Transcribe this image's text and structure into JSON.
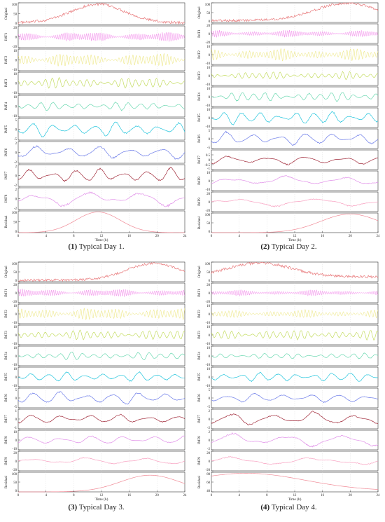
{
  "captions": [
    {
      "num": "(1)",
      "text": "Typical Day 1."
    },
    {
      "num": "(2)",
      "text": "Typical Day 2."
    },
    {
      "num": "(3)",
      "text": "Typical Day 3."
    },
    {
      "num": "(4)",
      "text": "Typical Day 4."
    }
  ],
  "chart_data": [
    {
      "type": "line",
      "title": "",
      "xlabel": "Time (h)",
      "xlim": [
        0,
        24
      ],
      "xticks": [
        0,
        4,
        8,
        12,
        16,
        20,
        24
      ],
      "grid": true,
      "panels": [
        {
          "label": "Original",
          "color": "#e8787a",
          "ylim": [
            0,
            100
          ],
          "yticks": [
            "0",
            "50",
            "100"
          ],
          "kind": "trend",
          "peak": 11.5,
          "width": 5.5,
          "base": 8,
          "amp": 85,
          "noise": 6
        },
        {
          "label": "IMF1",
          "color": "#f07ae8",
          "ylim": [
            -20,
            20
          ],
          "yticks": [
            "-20",
            "0",
            "20"
          ],
          "kind": "osc",
          "amp": 9,
          "period": 0.28
        },
        {
          "label": "IMF2",
          "color": "#e8e060",
          "ylim": [
            -10,
            10
          ],
          "yticks": [
            "-10",
            "0",
            "10"
          ],
          "kind": "osc",
          "amp": 6,
          "period": 0.5
        },
        {
          "label": "IMF3",
          "color": "#c4dc60",
          "ylim": [
            -10,
            10
          ],
          "yticks": [
            "-10",
            "0",
            "10"
          ],
          "kind": "osc",
          "amp": 5,
          "period": 1.0
        },
        {
          "label": "IMF4",
          "color": "#6ad8b0",
          "ylim": [
            -10,
            10
          ],
          "yticks": [
            "-10",
            "0",
            "10"
          ],
          "kind": "osc",
          "amp": 4,
          "period": 1.8
        },
        {
          "label": "IMF5",
          "color": "#20c4dc",
          "ylim": [
            -5,
            5
          ],
          "yticks": [
            "-5",
            "0",
            "5"
          ],
          "kind": "osc",
          "amp": 3.5,
          "period": 3.0
        },
        {
          "label": "IMF6",
          "color": "#6a7ae8",
          "ylim": [
            -2,
            2
          ],
          "yticks": [
            "-2",
            "0",
            "2"
          ],
          "kind": "osc",
          "amp": 1.3,
          "period": 4.5
        },
        {
          "label": "IMF7",
          "color": "#a02838",
          "ylim": [
            -2,
            2
          ],
          "yticks": [
            "-2",
            "0",
            "2"
          ],
          "kind": "osc",
          "amp": 1.4,
          "period": 3.4
        },
        {
          "label": "IMF8",
          "color": "#e08ee8",
          "ylim": [
            -2,
            2
          ],
          "yticks": [
            "-2",
            "0",
            "2"
          ],
          "kind": "osc",
          "amp": 1.5,
          "period": 7.5
        },
        {
          "label": "Residual",
          "color": "#f08a96",
          "ylim": [
            0,
            100
          ],
          "yticks": [
            "0",
            "50",
            "100"
          ],
          "kind": "smooth",
          "peak": 11.5,
          "width": 4.5,
          "base": 0,
          "amp": 95
        }
      ]
    },
    {
      "type": "line",
      "title": "",
      "xlabel": "Time (h)",
      "xlim": [
        0,
        24
      ],
      "xticks": [
        0,
        4,
        8,
        12,
        16,
        20,
        24
      ],
      "grid": true,
      "panels": [
        {
          "label": "Original",
          "color": "#e8787a",
          "ylim": [
            0,
            100
          ],
          "yticks": [
            "0",
            "50",
            "100"
          ],
          "kind": "trend",
          "peak": 19.5,
          "width": 6.5,
          "base": 10,
          "amp": 88,
          "noise": 6
        },
        {
          "label": "IMF1",
          "color": "#f07ae8",
          "ylim": [
            -20,
            20
          ],
          "yticks": [
            "-20",
            "0",
            "20"
          ],
          "kind": "osc",
          "amp": 7,
          "period": 0.28
        },
        {
          "label": "IMF2",
          "color": "#e8e060",
          "ylim": [
            -10,
            10
          ],
          "yticks": [
            "-10",
            "0",
            "10"
          ],
          "kind": "osc",
          "amp": 6,
          "period": 0.5
        },
        {
          "label": "IMF3",
          "color": "#c4dc60",
          "ylim": [
            -10,
            10
          ],
          "yticks": [
            "-10",
            "0",
            "10"
          ],
          "kind": "osc",
          "amp": 4,
          "period": 1.0
        },
        {
          "label": "IMF4",
          "color": "#6ad8b0",
          "ylim": [
            -10,
            10
          ],
          "yticks": [
            "-10",
            "0",
            "10"
          ],
          "kind": "osc",
          "amp": 5,
          "period": 1.6
        },
        {
          "label": "IMF5",
          "color": "#20c4dc",
          "ylim": [
            -10,
            10
          ],
          "yticks": [
            "-10",
            "0",
            "10"
          ],
          "kind": "osc",
          "amp": 7,
          "period": 2.6
        },
        {
          "label": "IMF6",
          "color": "#6a7ae8",
          "ylim": [
            -5,
            5
          ],
          "yticks": [
            "-5",
            "0",
            "5"
          ],
          "kind": "osc",
          "amp": 3.5,
          "period": 3.8
        },
        {
          "label": "IMF7",
          "color": "#a02838",
          "ylim": [
            -1,
            1
          ],
          "yticks": [
            "-1",
            "-0.5",
            "0",
            "0.5"
          ],
          "kind": "osc",
          "amp": 0.5,
          "period": 5.5
        },
        {
          "label": "IMF8",
          "color": "#e08ee8",
          "ylim": [
            -10,
            10
          ],
          "yticks": [
            "-10",
            "0",
            "10"
          ],
          "kind": "osc",
          "amp": 5,
          "period": 8.0
        },
        {
          "label": "IMF9",
          "color": "#f8a0c0",
          "ylim": [
            -20,
            20
          ],
          "yticks": [
            "-20",
            "0",
            "20"
          ],
          "kind": "osc",
          "amp": 10,
          "period": 12.0
        },
        {
          "label": "Residual",
          "color": "#f08a96",
          "ylim": [
            0,
            100
          ],
          "yticks": [
            "0",
            "50",
            "100"
          ],
          "kind": "smooth",
          "peak": 20,
          "width": 6,
          "base": 0,
          "amp": 95
        }
      ]
    },
    {
      "type": "line",
      "title": "",
      "xlabel": "Time (h)",
      "xlim": [
        0,
        24
      ],
      "xticks": [
        0,
        4,
        8,
        12,
        16,
        20,
        24
      ],
      "grid": true,
      "panels": [
        {
          "label": "Original",
          "color": "#e8787a",
          "ylim": [
            0,
            100
          ],
          "yticks": [
            "0",
            "50",
            "100"
          ],
          "kind": "trend",
          "peak": 19.5,
          "width": 5.5,
          "base": 8,
          "amp": 85,
          "noise": 6
        },
        {
          "label": "IMF1",
          "color": "#f07ae8",
          "ylim": [
            -20,
            20
          ],
          "yticks": [
            "-20",
            "0",
            "20"
          ],
          "kind": "osc",
          "amp": 8,
          "period": 0.28
        },
        {
          "label": "IMF2",
          "color": "#e8e060",
          "ylim": [
            -10,
            10
          ],
          "yticks": [
            "-10",
            "0",
            "10"
          ],
          "kind": "osc",
          "amp": 6,
          "period": 0.5
        },
        {
          "label": "IMF3",
          "color": "#c4dc60",
          "ylim": [
            -10,
            10
          ],
          "yticks": [
            "-10",
            "0",
            "10"
          ],
          "kind": "osc",
          "amp": 5,
          "period": 1.0
        },
        {
          "label": "IMF4",
          "color": "#6ad8b0",
          "ylim": [
            -10,
            10
          ],
          "yticks": [
            "-10",
            "0",
            "10"
          ],
          "kind": "osc",
          "amp": 4,
          "period": 1.6
        },
        {
          "label": "IMF5",
          "color": "#20c4dc",
          "ylim": [
            -10,
            10
          ],
          "yticks": [
            "-10",
            "0",
            "10"
          ],
          "kind": "osc",
          "amp": 5,
          "period": 2.6
        },
        {
          "label": "IMF6",
          "color": "#6a7ae8",
          "ylim": [
            -5,
            5
          ],
          "yticks": [
            "-5",
            "0",
            "5"
          ],
          "kind": "osc",
          "amp": 3.5,
          "period": 3.8
        },
        {
          "label": "IMF7",
          "color": "#a02838",
          "ylim": [
            -1,
            1
          ],
          "yticks": [
            "-1",
            "0",
            "1"
          ],
          "kind": "osc",
          "amp": 0.5,
          "period": 4.2
        },
        {
          "label": "IMF8",
          "color": "#e08ee8",
          "ylim": [
            -10,
            10
          ],
          "yticks": [
            "-10",
            "0",
            "10"
          ],
          "kind": "osc",
          "amp": 5,
          "period": 4.5
        },
        {
          "label": "IMF9",
          "color": "#f8a0c0",
          "ylim": [
            -20,
            20
          ],
          "yticks": [
            "-20",
            "0",
            "20"
          ],
          "kind": "osc",
          "amp": 8,
          "period": 8.0
        },
        {
          "label": "Residual",
          "color": "#f08a96",
          "ylim": [
            0,
            100
          ],
          "yticks": [
            "0",
            "50",
            "100"
          ],
          "kind": "smooth",
          "peak": 19,
          "width": 6,
          "base": 0,
          "amp": 85
        }
      ]
    },
    {
      "type": "line",
      "title": "",
      "xlabel": "Time (h)",
      "xlim": [
        0,
        24
      ],
      "xticks": [
        0,
        4,
        8,
        12,
        16,
        20,
        24
      ],
      "grid": true,
      "panels": [
        {
          "label": "Original",
          "color": "#e8787a",
          "ylim": [
            0,
            100
          ],
          "yticks": [
            "0",
            "50",
            "100"
          ],
          "kind": "trend",
          "peak": 7,
          "width": 6.5,
          "base": 25,
          "amp": 70,
          "noise": 7
        },
        {
          "label": "IMF1",
          "color": "#f07ae8",
          "ylim": [
            -20,
            20
          ],
          "yticks": [
            "-20",
            "0",
            "20"
          ],
          "kind": "osc",
          "amp": 6,
          "period": 0.28
        },
        {
          "label": "IMF2",
          "color": "#e8e060",
          "ylim": [
            -10,
            10
          ],
          "yticks": [
            "-10",
            "0",
            "10"
          ],
          "kind": "osc",
          "amp": 4,
          "period": 0.5
        },
        {
          "label": "IMF3",
          "color": "#c4dc60",
          "ylim": [
            -10,
            10
          ],
          "yticks": [
            "-10",
            "0",
            "10"
          ],
          "kind": "osc",
          "amp": 5,
          "period": 1.0
        },
        {
          "label": "IMF4",
          "color": "#6ad8b0",
          "ylim": [
            -10,
            10
          ],
          "yticks": [
            "-10",
            "0",
            "10"
          ],
          "kind": "osc",
          "amp": 3,
          "period": 1.6
        },
        {
          "label": "IMF5",
          "color": "#20c4dc",
          "ylim": [
            -10,
            10
          ],
          "yticks": [
            "-10",
            "0",
            "10"
          ],
          "kind": "osc",
          "amp": 5,
          "period": 2.6
        },
        {
          "label": "IMF6",
          "color": "#6a7ae8",
          "ylim": [
            -5,
            5
          ],
          "yticks": [
            "-5",
            "0",
            "5"
          ],
          "kind": "osc",
          "amp": 2.5,
          "period": 4.0
        },
        {
          "label": "IMF7",
          "color": "#a02838",
          "ylim": [
            -2,
            2
          ],
          "yticks": [
            "-2",
            "0",
            "2"
          ],
          "kind": "osc",
          "amp": 1.5,
          "period": 6.0
        },
        {
          "label": "IMF8",
          "color": "#e08ee8",
          "ylim": [
            -2,
            2
          ],
          "yticks": [
            "-2",
            "0",
            "2"
          ],
          "kind": "osc",
          "amp": 1.5,
          "period": 8.0
        },
        {
          "label": "IMF9",
          "color": "#f8a0c0",
          "ylim": [
            -20,
            20
          ],
          "yticks": [
            "-20",
            "0",
            "20"
          ],
          "kind": "osc",
          "amp": 10,
          "period": 12.0
        },
        {
          "label": "Residual",
          "color": "#f08a96",
          "ylim": [
            40,
            80
          ],
          "yticks": [
            "40",
            "60",
            "80"
          ],
          "kind": "smooth",
          "peak": 5,
          "width": 12,
          "base": 42,
          "amp": 36
        }
      ]
    }
  ]
}
